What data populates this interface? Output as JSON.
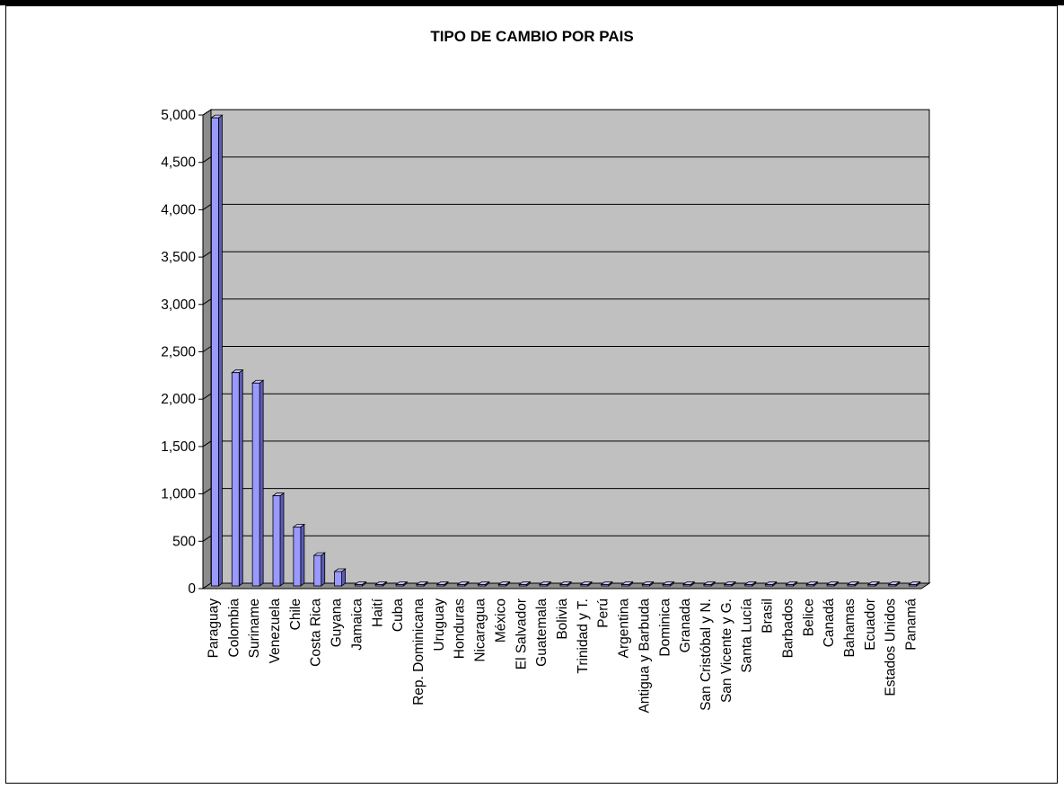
{
  "chart_data": {
    "type": "bar",
    "title": "TIPO DE CAMBIO POR PAIS",
    "xlabel": "",
    "ylabel": "",
    "ylim": [
      0,
      5000
    ],
    "yticks": [
      "0",
      "500",
      "1,000",
      "1,500",
      "2,000",
      "2,500",
      "3,000",
      "3,500",
      "4,000",
      "4,500",
      "5,000"
    ],
    "grid": true,
    "legend": "none",
    "categories": [
      "Paraguay",
      "Colombia",
      "Suriname",
      "Venezuela",
      "Chile",
      "Costa Rica",
      "Guyana",
      "Jamaica",
      "Haití",
      "Cuba",
      "Rep. Dominicana",
      "Uruguay",
      "Honduras",
      "Nicaragua",
      "México",
      "El Salvador",
      "Guatemala",
      "Bolivia",
      "Trinidad y T.",
      "Perú",
      "Argentina",
      "Antigua y Barbuda",
      "Dominica",
      "Granada",
      "San Cristóbal y N.",
      "San Vicente y G.",
      "Santa Lucía",
      "Brasil",
      "Barbados",
      "Belice",
      "Canadá",
      "Bahamas",
      "Ecuador",
      "Estados Unidos",
      "Panamá"
    ],
    "values": [
      4970,
      2280,
      2170,
      980,
      650,
      350,
      180,
      40,
      27,
      26,
      25,
      24,
      18,
      16,
      11,
      9,
      8,
      8,
      6,
      3,
      3,
      3,
      3,
      3,
      3,
      3,
      3,
      2,
      2,
      2,
      1,
      1,
      1,
      1,
      1
    ],
    "colors": {
      "bar_front": "#9999ff",
      "bar_side": "#5c5cb8",
      "bar_top": "#c4c4ff",
      "plot_back": "#c0c0c0",
      "plot_side": "#8c8c8c",
      "plot_floor": "#8c8c8c",
      "gridline": "#000000"
    }
  }
}
